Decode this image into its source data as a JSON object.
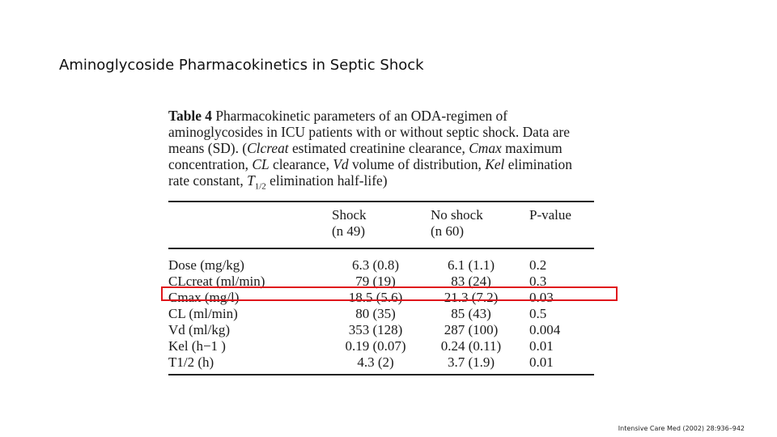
{
  "slide": {
    "title": "Aminoglycoside Pharmacokinetics in Septic Shock",
    "citation": "Intensive Care Med (2002) 28:936–942"
  },
  "table": {
    "caption": {
      "label": "Table 4",
      "text": "Pharmacokinetic parameters of an ODA-regimen of aminoglycosides in ICU patients with or without septic shock. Data are means (SD). (Clcreat estimated creatinine clearance, Cmax maximum concentration, CL clearance, Vd volume of distribution, Kel elimination rate constant, T1/2 elimination half-life)"
    },
    "headers": [
      {
        "line1": "Shock",
        "line2": "(n 49)"
      },
      {
        "line1": "No shock",
        "line2": "(n 60)"
      },
      {
        "line1": "P-value",
        "line2": ""
      }
    ],
    "rows": [
      {
        "param": "Dose (mg/kg)",
        "shock": "6.3 (0.8)",
        "no_shock": "6.1 (1.1)",
        "p": "0.2"
      },
      {
        "param": "CLcreat (ml/min)",
        "shock": "79 (19)",
        "no_shock": "83 (24)",
        "p": "0.3"
      },
      {
        "param": "Cmax (mg/l)",
        "shock": "18.5 (5.6)",
        "no_shock": "21.3 (7.2)",
        "p": "0.03"
      },
      {
        "param": "CL (ml/min)",
        "shock": "80 (35)",
        "no_shock": "85 (43)",
        "p": "0.5"
      },
      {
        "param": "Vd (ml/kg)",
        "shock": "353 (128)",
        "no_shock": "287 (100)",
        "p": "0.004"
      },
      {
        "param": "Kel (h−1 )",
        "shock": "0.19 (0.07)",
        "no_shock": "0.24 (0.11)",
        "p": "0.01"
      },
      {
        "param": "T1/2 (h)",
        "shock": "4.3 (2)",
        "no_shock": "3.7 (1.9)",
        "p": "0.01"
      }
    ],
    "highlighted_row": "Cmax (mg/l)"
  },
  "colors": {
    "highlight": "#e0161c"
  }
}
